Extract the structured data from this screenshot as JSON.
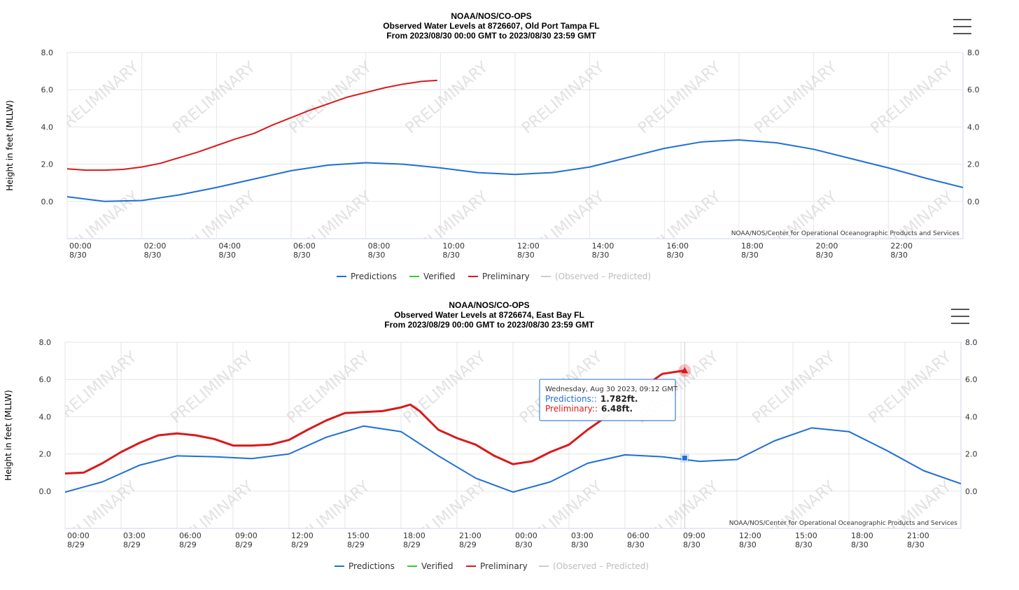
{
  "chart_data": [
    {
      "type": "line",
      "title": "NOAA/NOS/CO-OPS",
      "subtitle": "Observed Water Levels at 8726607, Old Port Tampa FL",
      "subtitle2": "From 2023/08/30 00:00 GMT to 2023/08/30 23:59 GMT",
      "ylabel": "Height in feet (MLLW)",
      "xlim": [
        0,
        24
      ],
      "ylim": [
        -2,
        8
      ],
      "yticks": [
        0,
        2,
        4,
        6,
        8
      ],
      "ytick_labels": [
        "0.0",
        "2.0",
        "4.0",
        "6.0",
        "8.0"
      ],
      "xticks": [
        0,
        2,
        4,
        6,
        8,
        10,
        12,
        14,
        16,
        18,
        20,
        22
      ],
      "xtick_labels": [
        [
          "00:00",
          "8/30"
        ],
        [
          "02:00",
          "8/30"
        ],
        [
          "04:00",
          "8/30"
        ],
        [
          "06:00",
          "8/30"
        ],
        [
          "08:00",
          "8/30"
        ],
        [
          "10:00",
          "8/30"
        ],
        [
          "12:00",
          "8/30"
        ],
        [
          "14:00",
          "8/30"
        ],
        [
          "16:00",
          "8/30"
        ],
        [
          "18:00",
          "8/30"
        ],
        [
          "20:00",
          "8/30"
        ],
        [
          "22:00",
          "8/30"
        ]
      ],
      "credit": "NOAA/NOS/Center for Operational Oceanographic Products and Services",
      "watermark": "PRELIMINARY",
      "legend": [
        {
          "label": "Predictions",
          "color": "#1f6fd6"
        },
        {
          "label": "Verified",
          "color": "#33cc33"
        },
        {
          "label": "Preliminary",
          "color": "#d91a1a"
        },
        {
          "label": "(Observed – Predicted)",
          "color": "#cccccc",
          "disabled": true
        }
      ],
      "series": [
        {
          "name": "Predictions",
          "color": "#1f6fd6",
          "width": 2,
          "x": [
            0,
            1,
            2,
            3,
            4,
            5,
            6,
            7,
            8,
            9,
            10,
            11,
            12,
            13,
            14,
            15,
            16,
            17,
            18,
            19,
            20,
            21,
            22,
            23,
            24
          ],
          "y": [
            0.25,
            0.0,
            0.05,
            0.35,
            0.75,
            1.2,
            1.65,
            1.95,
            2.08,
            2.0,
            1.8,
            1.55,
            1.45,
            1.55,
            1.85,
            2.35,
            2.85,
            3.2,
            3.3,
            3.15,
            2.8,
            2.3,
            1.8,
            1.25,
            0.75
          ]
        },
        {
          "name": "Preliminary",
          "color": "#d91a1a",
          "width": 2,
          "x": [
            0,
            0.5,
            1,
            1.5,
            2,
            2.5,
            3,
            3.5,
            4,
            4.5,
            5,
            5.5,
            6,
            6.5,
            7,
            7.5,
            8,
            8.5,
            9,
            9.5,
            9.9
          ],
          "y": [
            1.75,
            1.68,
            1.68,
            1.72,
            1.85,
            2.05,
            2.35,
            2.65,
            3.0,
            3.35,
            3.65,
            4.1,
            4.5,
            4.9,
            5.25,
            5.6,
            5.85,
            6.1,
            6.3,
            6.45,
            6.5
          ]
        }
      ]
    },
    {
      "type": "line",
      "title": "NOAA/NOS/CO-OPS",
      "subtitle": "Observed Water Levels at 8726674, East Bay FL",
      "subtitle2": "From 2023/08/29 00:00 GMT to 2023/08/30 23:59 GMT",
      "ylabel": "Height in feet (MLLW)",
      "xlim": [
        0,
        48
      ],
      "ylim": [
        -2,
        8
      ],
      "yticks": [
        0,
        2,
        4,
        6,
        8
      ],
      "ytick_labels": [
        "0.0",
        "2.0",
        "4.0",
        "6.0",
        "8.0"
      ],
      "xticks": [
        0,
        3,
        6,
        9,
        12,
        15,
        18,
        21,
        24,
        27,
        30,
        33,
        36,
        39,
        42,
        45
      ],
      "xtick_labels": [
        [
          "00:00",
          "8/29"
        ],
        [
          "03:00",
          "8/29"
        ],
        [
          "06:00",
          "8/29"
        ],
        [
          "09:00",
          "8/29"
        ],
        [
          "12:00",
          "8/29"
        ],
        [
          "15:00",
          "8/29"
        ],
        [
          "18:00",
          "8/29"
        ],
        [
          "21:00",
          "8/29"
        ],
        [
          "00:00",
          "8/30"
        ],
        [
          "03:00",
          "8/30"
        ],
        [
          "06:00",
          "8/30"
        ],
        [
          "09:00",
          "8/30"
        ],
        [
          "12:00",
          "8/30"
        ],
        [
          "15:00",
          "8/30"
        ],
        [
          "18:00",
          "8/30"
        ],
        [
          "21:00",
          "8/30"
        ]
      ],
      "credit": "NOAA/NOS/Center for Operational Oceanographic Products and Services",
      "watermark": "PRELIMINARY",
      "legend": [
        {
          "label": "Predictions",
          "color": "#1f6fd6"
        },
        {
          "label": "Verified",
          "color": "#33cc33"
        },
        {
          "label": "Preliminary",
          "color": "#d91a1a"
        },
        {
          "label": "(Observed – Predicted)",
          "color": "#cccccc",
          "disabled": true
        }
      ],
      "series": [
        {
          "name": "Predictions",
          "color": "#1f6fd6",
          "width": 2,
          "x": [
            0,
            2,
            4,
            6,
            8,
            10,
            12,
            14,
            16,
            18,
            20,
            22,
            24,
            26,
            28,
            30,
            32,
            34,
            36,
            38,
            40,
            42,
            44,
            46,
            48
          ],
          "y": [
            -0.05,
            0.5,
            1.4,
            1.9,
            1.85,
            1.75,
            2.0,
            2.9,
            3.5,
            3.2,
            1.9,
            0.7,
            -0.05,
            0.5,
            1.5,
            1.95,
            1.85,
            1.6,
            1.7,
            2.7,
            3.4,
            3.2,
            2.2,
            1.1,
            0.4
          ]
        },
        {
          "name": "Preliminary",
          "color": "#d91a1a",
          "width": 3,
          "x": [
            0,
            1,
            2,
            3,
            4,
            5,
            6,
            7,
            8,
            9,
            10,
            11,
            12,
            13,
            14,
            15,
            16,
            17,
            18,
            18.5,
            19,
            20,
            21,
            22,
            23,
            24,
            25,
            26,
            27,
            28,
            29,
            30,
            31,
            32,
            33.2
          ],
          "y": [
            0.95,
            1.0,
            1.5,
            2.1,
            2.6,
            3.0,
            3.1,
            3.0,
            2.8,
            2.45,
            2.45,
            2.5,
            2.75,
            3.3,
            3.8,
            4.2,
            4.25,
            4.3,
            4.5,
            4.65,
            4.3,
            3.3,
            2.85,
            2.5,
            1.9,
            1.45,
            1.6,
            2.1,
            2.5,
            3.3,
            4.0,
            4.8,
            5.6,
            6.3,
            6.48
          ]
        }
      ],
      "tooltip": {
        "x": 33.2,
        "date": "Wednesday, Aug 30 2023, 09:12 GMT",
        "rows": [
          {
            "label": "Predictions",
            "value": "1.782ft.",
            "color": "#1f6fd6",
            "y": 1.782
          },
          {
            "label": "Preliminary",
            "value": "6.48ft.",
            "color": "#d91a1a",
            "y": 6.48
          }
        ]
      }
    }
  ]
}
